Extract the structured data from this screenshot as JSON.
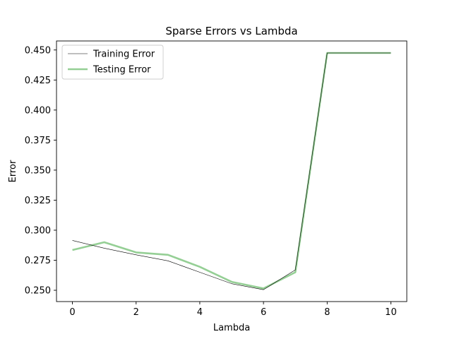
{
  "chart_data": {
    "type": "line",
    "title": "Sparse Errors vs Lambda",
    "xlabel": "Lambda",
    "ylabel": "Error",
    "x": [
      0,
      1,
      2,
      3,
      4,
      5,
      6,
      7,
      8,
      9,
      10
    ],
    "xlim": [
      -0.5,
      10.5
    ],
    "ylim": [
      0.2406,
      0.4575
    ],
    "xticks": [
      0,
      2,
      4,
      6,
      8,
      10
    ],
    "xtick_labels": [
      "0",
      "2",
      "4",
      "6",
      "8",
      "10"
    ],
    "yticks": [
      0.25,
      0.275,
      0.3,
      0.325,
      0.35,
      0.375,
      0.4,
      0.425,
      0.45
    ],
    "ytick_labels": [
      "0.250",
      "0.275",
      "0.300",
      "0.325",
      "0.350",
      "0.375",
      "0.400",
      "0.425",
      "0.450"
    ],
    "grid": false,
    "legend_position": "upper-left",
    "series": [
      {
        "name": "Training Error",
        "values": [
          0.2915,
          0.285,
          0.2795,
          0.2745,
          0.265,
          0.2555,
          0.2505,
          0.267,
          0.4475,
          0.4475,
          0.4475
        ],
        "color": "#000000",
        "style": "thin"
      },
      {
        "name": "Testing Error",
        "values": [
          0.2835,
          0.29,
          0.2815,
          0.2795,
          0.2695,
          0.257,
          0.2515,
          0.265,
          0.4475,
          0.4475,
          0.4475
        ],
        "color": "#2ca02c",
        "style": "thick-translucent"
      }
    ]
  }
}
